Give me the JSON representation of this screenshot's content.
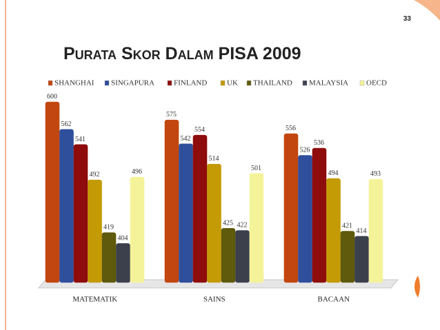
{
  "page_number": "33",
  "chart_data": {
    "type": "bar",
    "title": "Purata Skor Dalam PISA 2009",
    "categories": [
      "MATEMATIK",
      "SAINS",
      "BACAAN"
    ],
    "series": [
      {
        "name": "SHANGHAI",
        "color": "#c2460f",
        "values": [
          600,
          575,
          556
        ]
      },
      {
        "name": "SINGAPURA",
        "color": "#2f4f9c",
        "values": [
          562,
          542,
          526
        ]
      },
      {
        "name": "FINLAND",
        "color": "#8e0c0c",
        "values": [
          541,
          554,
          536
        ]
      },
      {
        "name": "UK",
        "color": "#c49a05",
        "values": [
          492,
          514,
          494
        ]
      },
      {
        "name": "THAILAND",
        "color": "#5f5a0c",
        "values": [
          419,
          425,
          421
        ]
      },
      {
        "name": "MALAYSIA",
        "color": "#3b404c",
        "values": [
          404,
          422,
          414
        ]
      },
      {
        "name": "OECD",
        "color": "#f4f39a",
        "values": [
          496,
          501,
          493
        ]
      }
    ],
    "ylim": [
      350,
      600
    ],
    "legend": "top"
  }
}
